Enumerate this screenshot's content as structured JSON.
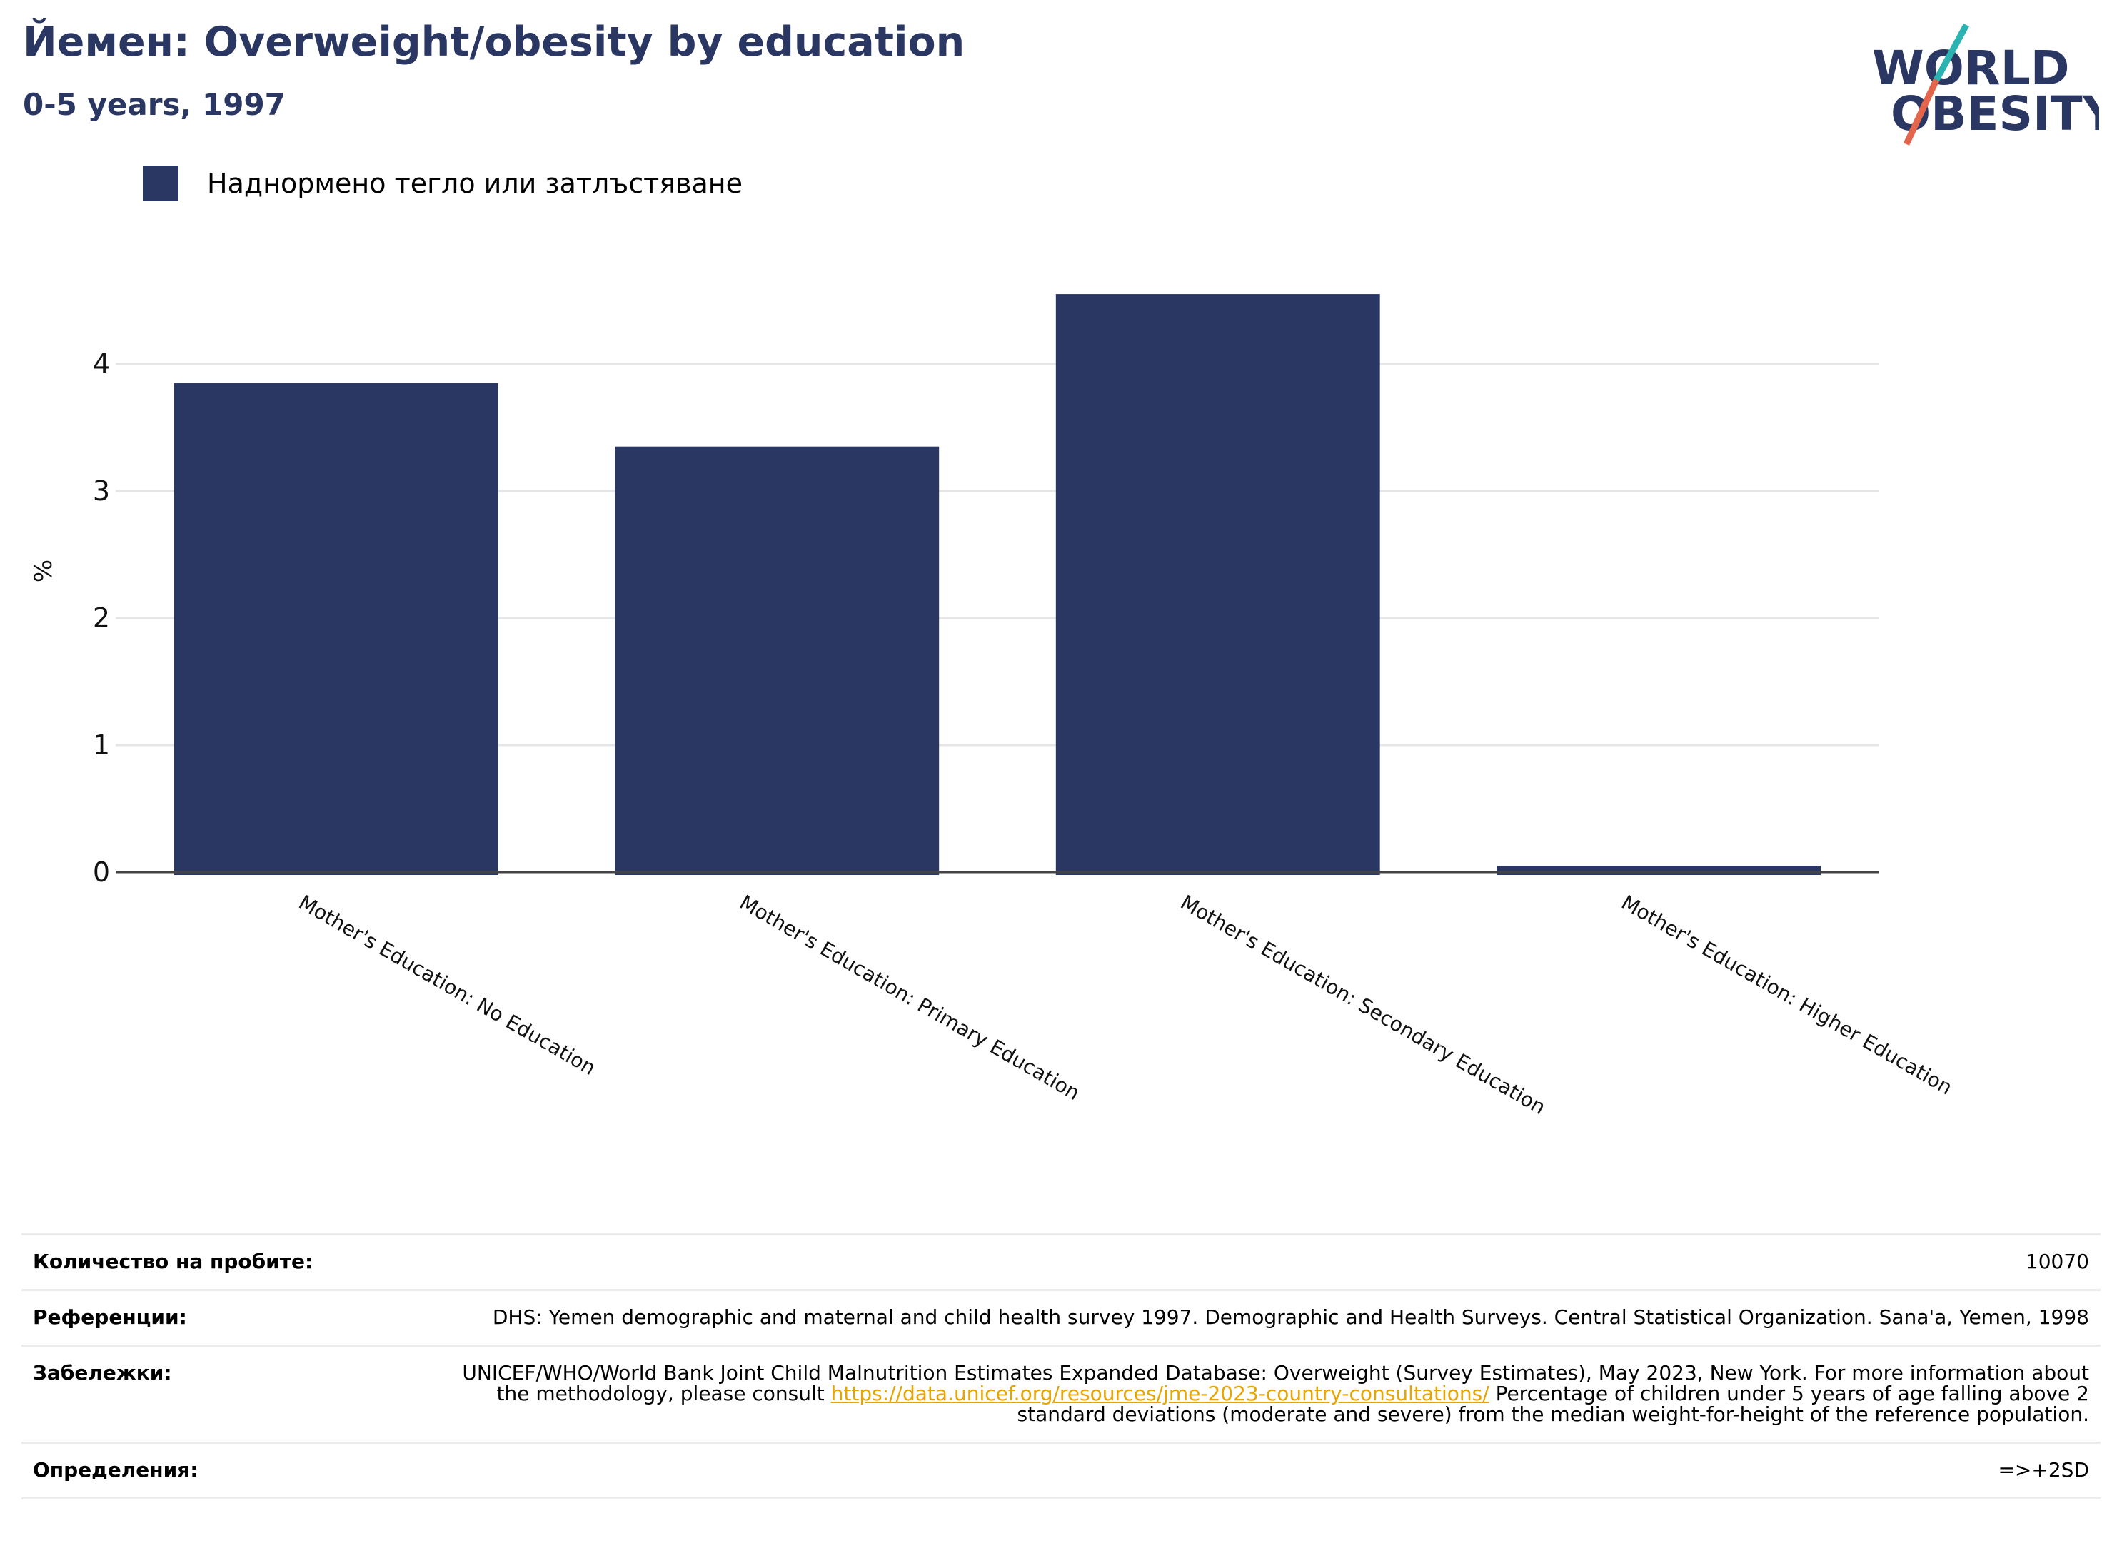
{
  "header": {
    "title": "Йемен: Overweight/obesity by education",
    "subtitle": "0-5 years, 1997"
  },
  "logo": {
    "line1": "WORLD",
    "line2": "OBESITY"
  },
  "colors": {
    "bar": "#2b3763",
    "title": "#2b3763",
    "logo_teal": "#2bb3b1",
    "logo_orange": "#e3654c",
    "link": "#e8a400"
  },
  "chart_data": {
    "type": "bar",
    "title": "Йемен: Overweight/obesity by education",
    "subtitle": "0-5 years, 1997",
    "categories": [
      "Mother's Education: No Education",
      "Mother's Education: Primary Education",
      "Mother's Education: Secondary Education",
      "Mother's Education: Higher Education"
    ],
    "series": [
      {
        "name": "Наднормено тегло или затлъстяване",
        "values": [
          3.85,
          3.35,
          4.55,
          0.05
        ]
      }
    ],
    "ylabel": "%",
    "xlabel": "",
    "yticks": [
      0,
      1,
      2,
      3,
      4
    ],
    "ylim": [
      0,
      4.6
    ],
    "grid": true,
    "legend": "top-left"
  },
  "table": {
    "rows": [
      {
        "label": "Количество на пробите:",
        "value": "10070"
      },
      {
        "label": "Референции:",
        "value": "DHS: Yemen demographic and maternal and child health survey 1997. Demographic and Health Surveys. Central Statistical Organization. Sana'a, Yemen, 1998"
      },
      {
        "label": "Забележки:",
        "value_before": "UNICEF/WHO/World Bank Joint Child Malnutrition Estimates Expanded Database: Overweight (Survey Estimates), May 2023, New York. For more information about the methodology, please consult ",
        "link": "https://data.unicef.org/resources/jme-2023-country-consultations/",
        "value_after": " Percentage of children under 5 years of age falling above 2 standard deviations (moderate and severe) from the median weight-for-height of the reference population."
      },
      {
        "label": "Определения:",
        "value": "=>+2SD"
      }
    ]
  }
}
